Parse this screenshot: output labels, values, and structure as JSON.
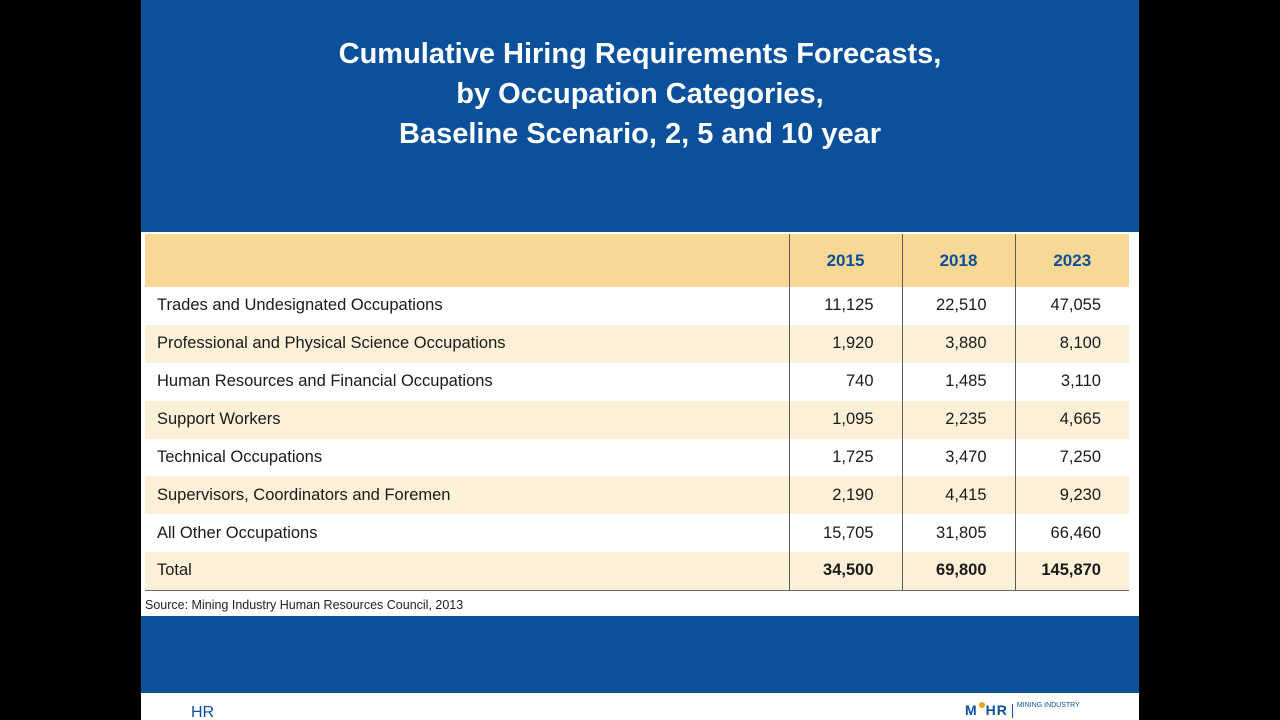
{
  "title": {
    "line1": "Cumulative Hiring Requirements Forecasts,",
    "line2": "by Occupation Categories,",
    "line3": "Baseline Scenario, 2, 5 and 10 year"
  },
  "table": {
    "columns": [
      "2015",
      "2018",
      "2023"
    ],
    "rows": [
      {
        "label": "Trades and Undesignated Occupations",
        "values": [
          "11,125",
          "22,510",
          "47,055"
        ]
      },
      {
        "label": "Professional and Physical Science Occupations",
        "values": [
          "1,920",
          "3,880",
          "8,100"
        ]
      },
      {
        "label": "Human Resources and Financial Occupations",
        "values": [
          "740",
          "1,485",
          "3,110"
        ]
      },
      {
        "label": "Support Workers",
        "values": [
          "1,095",
          "2,235",
          "4,665"
        ]
      },
      {
        "label": "Technical Occupations",
        "values": [
          "1,725",
          "3,470",
          "7,250"
        ]
      },
      {
        "label": "Supervisors, Coordinators and Foremen",
        "values": [
          "2,190",
          "4,415",
          "9,230"
        ]
      },
      {
        "label": "All Other Occupations",
        "values": [
          "15,705",
          "31,805",
          "66,460"
        ]
      },
      {
        "label": "Total",
        "values": [
          "34,500",
          "69,800",
          "145,870"
        ]
      }
    ]
  },
  "source": "Source: Mining Industry Human Resources Council, 2013",
  "footer": {
    "left_logo": "HR",
    "right_logo_mark_a": "M",
    "right_logo_mark_b": "HR",
    "right_logo_text": "MINING INDUSTRY"
  },
  "colors": {
    "brand_blue": "#0a509b",
    "header_fill": "#f7d894",
    "row_shade": "#fcf1d8"
  }
}
